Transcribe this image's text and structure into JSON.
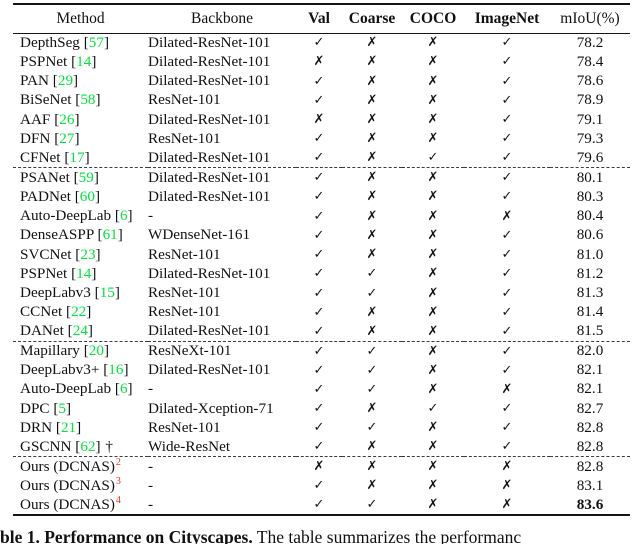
{
  "header": {
    "method": "Method",
    "backbone": "Backbone",
    "val": "Val",
    "coarse": "Coarse",
    "coco": "COCO",
    "imagenet": "ImageNet",
    "miou": "mIoU(%)"
  },
  "marks": {
    "check": "✓",
    "cross": "✗"
  },
  "colors": {
    "citation_green": "#00e43c",
    "superscript_red": "#ee3322"
  },
  "rows": [
    {
      "method": "DepthSeg",
      "cite": "57",
      "backbone": "Dilated-ResNet-101",
      "val": "✓",
      "coarse": "✗",
      "coco": "✗",
      "imagenet": "✓",
      "miou": "78.2"
    },
    {
      "method": "PSPNet",
      "cite": "14",
      "backbone": "Dilated-ResNet-101",
      "val": "✗",
      "coarse": "✗",
      "coco": "✗",
      "imagenet": "✓",
      "miou": "78.4"
    },
    {
      "method": "PAN",
      "cite": "29",
      "backbone": "Dilated-ResNet-101",
      "val": "✓",
      "coarse": "✗",
      "coco": "✗",
      "imagenet": "✓",
      "miou": "78.6"
    },
    {
      "method": "BiSeNet",
      "cite": "58",
      "backbone": "ResNet-101",
      "val": "✓",
      "coarse": "✗",
      "coco": "✗",
      "imagenet": "✓",
      "miou": "78.9"
    },
    {
      "method": "AAF",
      "cite": "26",
      "backbone": "Dilated-ResNet-101",
      "val": "✗",
      "coarse": "✗",
      "coco": "✗",
      "imagenet": "✓",
      "miou": "79.1"
    },
    {
      "method": "DFN",
      "cite": "27",
      "backbone": "ResNet-101",
      "val": "✓",
      "coarse": "✗",
      "coco": "✗",
      "imagenet": "✓",
      "miou": "79.3"
    },
    {
      "method": "CFNet",
      "cite": "17",
      "backbone": "Dilated-ResNet-101",
      "val": "✓",
      "coarse": "✗",
      "coco": "✓",
      "imagenet": "✓",
      "miou": "79.6",
      "dashed_after": true
    },
    {
      "method": "PSANet",
      "cite": "59",
      "backbone": "Dilated-ResNet-101",
      "val": "✓",
      "coarse": "✗",
      "coco": "✗",
      "imagenet": "✓",
      "miou": "80.1"
    },
    {
      "method": "PADNet",
      "cite": "60",
      "backbone": "Dilated-ResNet-101",
      "val": "✓",
      "coarse": "✗",
      "coco": "✗",
      "imagenet": "✓",
      "miou": "80.3"
    },
    {
      "method": "Auto-DeepLab",
      "cite": "6",
      "backbone": "-",
      "val": "✓",
      "coarse": "✗",
      "coco": "✗",
      "imagenet": "✗",
      "miou": "80.4"
    },
    {
      "method": "DenseASPP",
      "cite": "61",
      "backbone": "WDenseNet-161",
      "val": "✓",
      "coarse": "✗",
      "coco": "✗",
      "imagenet": "✓",
      "miou": "80.6"
    },
    {
      "method": "SVCNet",
      "cite": "23",
      "backbone": "ResNet-101",
      "val": "✓",
      "coarse": "✗",
      "coco": "✗",
      "imagenet": "✓",
      "miou": "81.0"
    },
    {
      "method": "PSPNet",
      "cite": "14",
      "backbone": "Dilated-ResNet-101",
      "val": "✓",
      "coarse": "✓",
      "coco": "✗",
      "imagenet": "✓",
      "miou": "81.2"
    },
    {
      "method": "DeepLabv3",
      "cite": "15",
      "backbone": "ResNet-101",
      "val": "✓",
      "coarse": "✓",
      "coco": "✗",
      "imagenet": "✓",
      "miou": "81.3"
    },
    {
      "method": "CCNet",
      "cite": "22",
      "backbone": "ResNet-101",
      "val": "✓",
      "coarse": "✗",
      "coco": "✗",
      "imagenet": "✓",
      "miou": "81.4"
    },
    {
      "method": "DANet",
      "cite": "24",
      "backbone": "Dilated-ResNet-101",
      "val": "✓",
      "coarse": "✗",
      "coco": "✗",
      "imagenet": "✓",
      "miou": "81.5",
      "dashed_after": true
    },
    {
      "method": "Mapillary",
      "cite": "20",
      "backbone": "ResNeXt-101",
      "val": "✓",
      "coarse": "✓",
      "coco": "✗",
      "imagenet": "✓",
      "miou": "82.0"
    },
    {
      "method": "DeepLabv3+",
      "cite": "16",
      "backbone": "Dilated-ResNet-101",
      "val": "✓",
      "coarse": "✓",
      "coco": "✗",
      "imagenet": "✓",
      "miou": "82.1"
    },
    {
      "method": "Auto-DeepLab",
      "cite": "6",
      "backbone": "-",
      "val": "✓",
      "coarse": "✓",
      "coco": "✗",
      "imagenet": "✗",
      "miou": "82.1"
    },
    {
      "method": "DPC",
      "cite": "5",
      "backbone": "Dilated-Xception-71",
      "val": "✓",
      "coarse": "✗",
      "coco": "✓",
      "imagenet": "✓",
      "miou": "82.7"
    },
    {
      "method": "DRN",
      "cite": "21",
      "backbone": "ResNet-101",
      "val": "✓",
      "coarse": "✓",
      "coco": "✗",
      "imagenet": "✓",
      "miou": "82.8"
    },
    {
      "method": "GSCNN",
      "cite": "62",
      "dagger": "†",
      "backbone": "Wide-ResNet",
      "val": "✓",
      "coarse": "✗",
      "coco": "✗",
      "imagenet": "✓",
      "miou": "82.8",
      "dashed_after": true
    },
    {
      "method": "Ours (DCNAS)",
      "sup": "2",
      "backbone": "-",
      "val": "✗",
      "coarse": "✗",
      "coco": "✗",
      "imagenet": "✗",
      "miou": "82.8"
    },
    {
      "method": "Ours (DCNAS)",
      "sup": "3",
      "backbone": "-",
      "val": "✓",
      "coarse": "✗",
      "coco": "✗",
      "imagenet": "✗",
      "miou": "83.1"
    },
    {
      "method": "Ours (DCNAS)",
      "sup": "4",
      "backbone": "-",
      "val": "✓",
      "coarse": "✓",
      "coco": "✗",
      "imagenet": "✗",
      "miou": "83.6",
      "miou_bold": true
    }
  ],
  "caption": {
    "bold": "ble 1. Performance on Cityscapes.",
    "text": " The table summarizes the performanc"
  }
}
